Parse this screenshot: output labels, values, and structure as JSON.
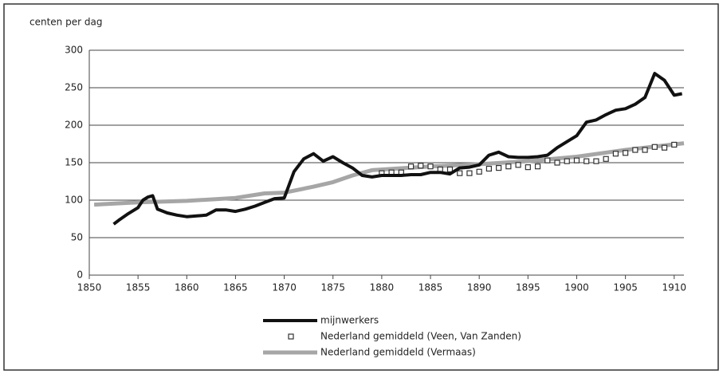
{
  "chart_data": {
    "type": "line",
    "ylabel": "centen per dag",
    "xlim": [
      1850,
      1911
    ],
    "ylim": [
      0,
      300
    ],
    "xticks": [
      1850,
      1855,
      1860,
      1865,
      1870,
      1875,
      1880,
      1885,
      1890,
      1895,
      1900,
      1905,
      1910
    ],
    "yticks": [
      0,
      50,
      100,
      150,
      200,
      250,
      300
    ],
    "grid": true,
    "series": [
      {
        "name": "mijnwerkers",
        "color": "#111111",
        "style": "line",
        "x": [
          1852.5,
          1853,
          1854,
          1855,
          1855.5,
          1856,
          1856.5,
          1857,
          1858,
          1859,
          1860,
          1861,
          1862,
          1863,
          1864,
          1865,
          1866,
          1867,
          1868,
          1869,
          1870,
          1871,
          1872,
          1873,
          1874,
          1875,
          1876,
          1877,
          1878,
          1879,
          1880,
          1881,
          1882,
          1883,
          1884,
          1885,
          1886,
          1887,
          1888,
          1889,
          1890,
          1891,
          1892,
          1893,
          1894,
          1895,
          1896,
          1897,
          1898,
          1899,
          1900,
          1901,
          1902,
          1903,
          1904,
          1905,
          1906,
          1907,
          1908,
          1909,
          1910,
          1910.8
        ],
        "values": [
          68,
          73,
          82,
          90,
          100,
          104,
          106,
          88,
          83,
          80,
          78,
          79,
          80,
          87,
          87,
          85,
          88,
          92,
          97,
          102,
          103,
          138,
          155,
          162,
          152,
          158,
          150,
          143,
          133,
          131,
          133,
          133,
          133,
          134,
          134,
          137,
          137,
          135,
          143,
          144,
          147,
          160,
          164,
          158,
          157,
          157,
          158,
          160,
          170,
          178,
          186,
          204,
          207,
          214,
          220,
          222,
          228,
          237,
          269,
          260,
          240,
          242
        ]
      },
      {
        "name": "Nederland gemiddeld (Veen, Van Zanden)",
        "color": "#333333",
        "style": "marker",
        "x": [
          1880,
          1881,
          1882,
          1883,
          1884,
          1885,
          1886,
          1887,
          1888,
          1889,
          1890,
          1891,
          1892,
          1893,
          1894,
          1895,
          1896,
          1897,
          1898,
          1899,
          1900,
          1901,
          1902,
          1903,
          1904,
          1905,
          1906,
          1907,
          1908,
          1909,
          1910
        ],
        "values": [
          136,
          137,
          137,
          145,
          146,
          145,
          141,
          141,
          136,
          136,
          138,
          142,
          143,
          145,
          147,
          144,
          145,
          153,
          150,
          152,
          153,
          152,
          152,
          155,
          162,
          163,
          167,
          167,
          171,
          170,
          174
        ]
      },
      {
        "name": "Nederland gemiddeld (Vermaas)",
        "color": "#a6a6a6",
        "style": "line",
        "x": [
          1850.5,
          1855,
          1860,
          1865,
          1868,
          1870,
          1873,
          1875,
          1877,
          1879,
          1885,
          1890,
          1895,
          1900,
          1905,
          1911
        ],
        "values": [
          94,
          97,
          99,
          103,
          109,
          110,
          118,
          124,
          133,
          140,
          145,
          148,
          152,
          158,
          167,
          176
        ]
      }
    ]
  }
}
